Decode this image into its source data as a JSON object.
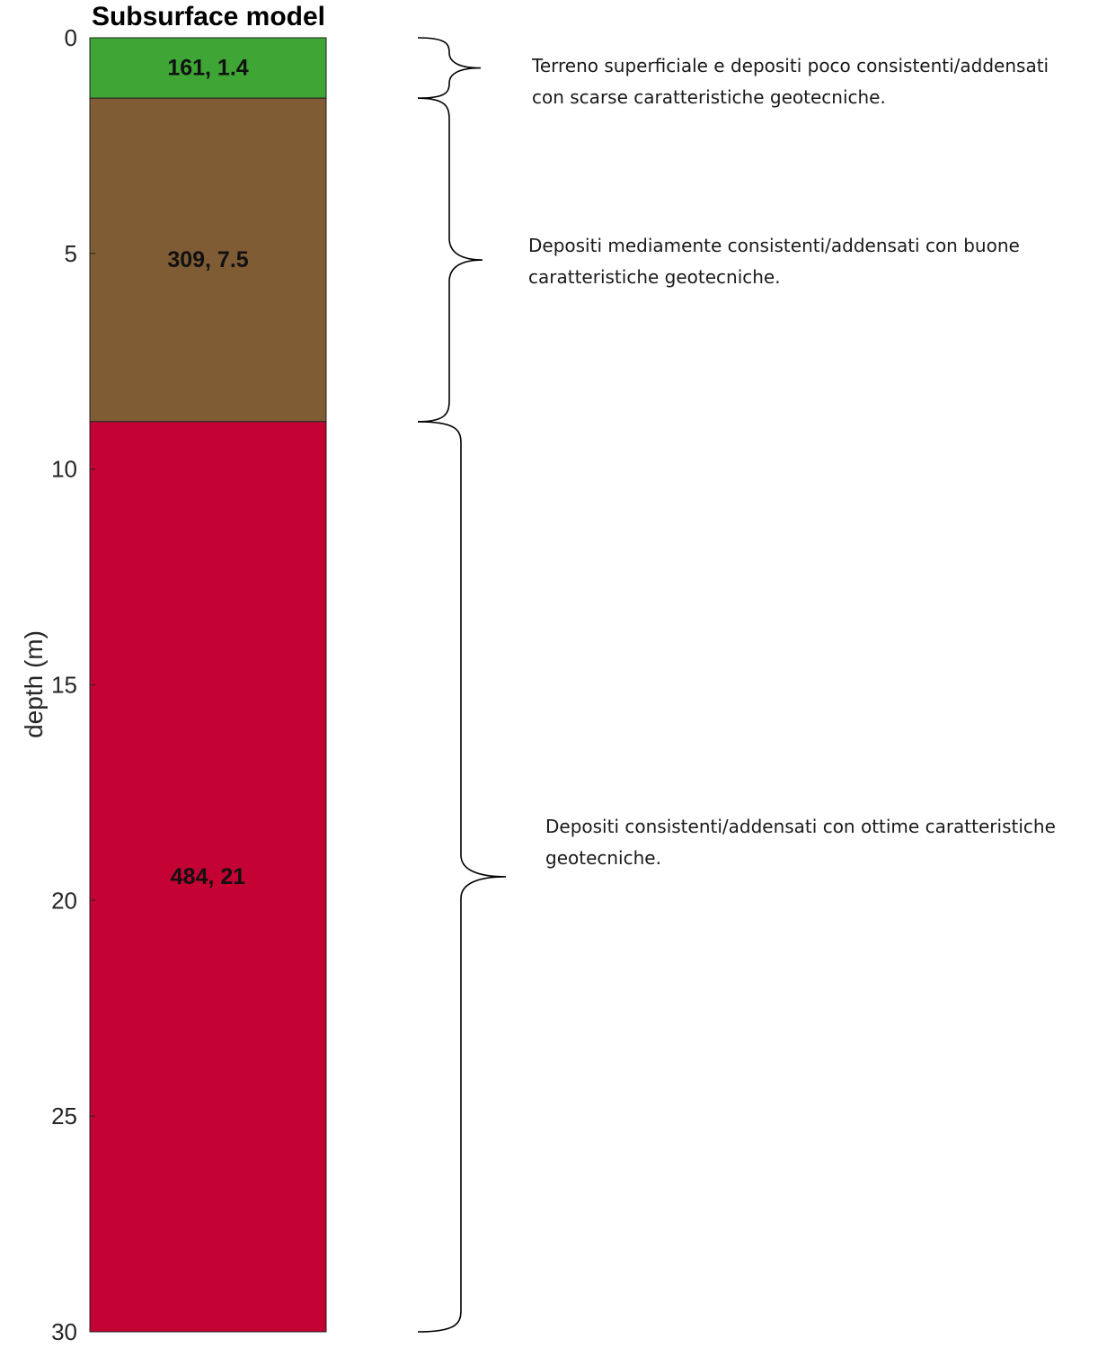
{
  "chart_data": {
    "type": "stratigraphic-column",
    "title": "Subsurface model",
    "ylabel": "depth (m)",
    "ylim": [
      0,
      30
    ],
    "yticks": [
      0,
      5,
      10,
      15,
      20,
      25,
      30
    ],
    "layers": [
      {
        "top": 0,
        "bottom": 1.4,
        "label": "161, 1.4",
        "color": "#3fa535"
      },
      {
        "top": 1.4,
        "bottom": 8.9,
        "label": "309, 7.5",
        "color": "#7f5c34"
      },
      {
        "top": 8.9,
        "bottom": 30,
        "label": "484, 21",
        "color": "#c40233"
      }
    ]
  },
  "annotations": [
    {
      "lines": [
        "Terreno superficiale e depositi poco consistenti/addensati",
        "con scarse caratteristiche geotecniche."
      ],
      "layer": 0
    },
    {
      "lines": [
        "Depositi mediamente consistenti/addensati con buone",
        "caratteristiche geotecniche."
      ],
      "layer": 1
    },
    {
      "lines": [
        "Depositi consistenti/addensati con ottime caratteristiche",
        "geotecniche."
      ],
      "layer": 2
    }
  ]
}
